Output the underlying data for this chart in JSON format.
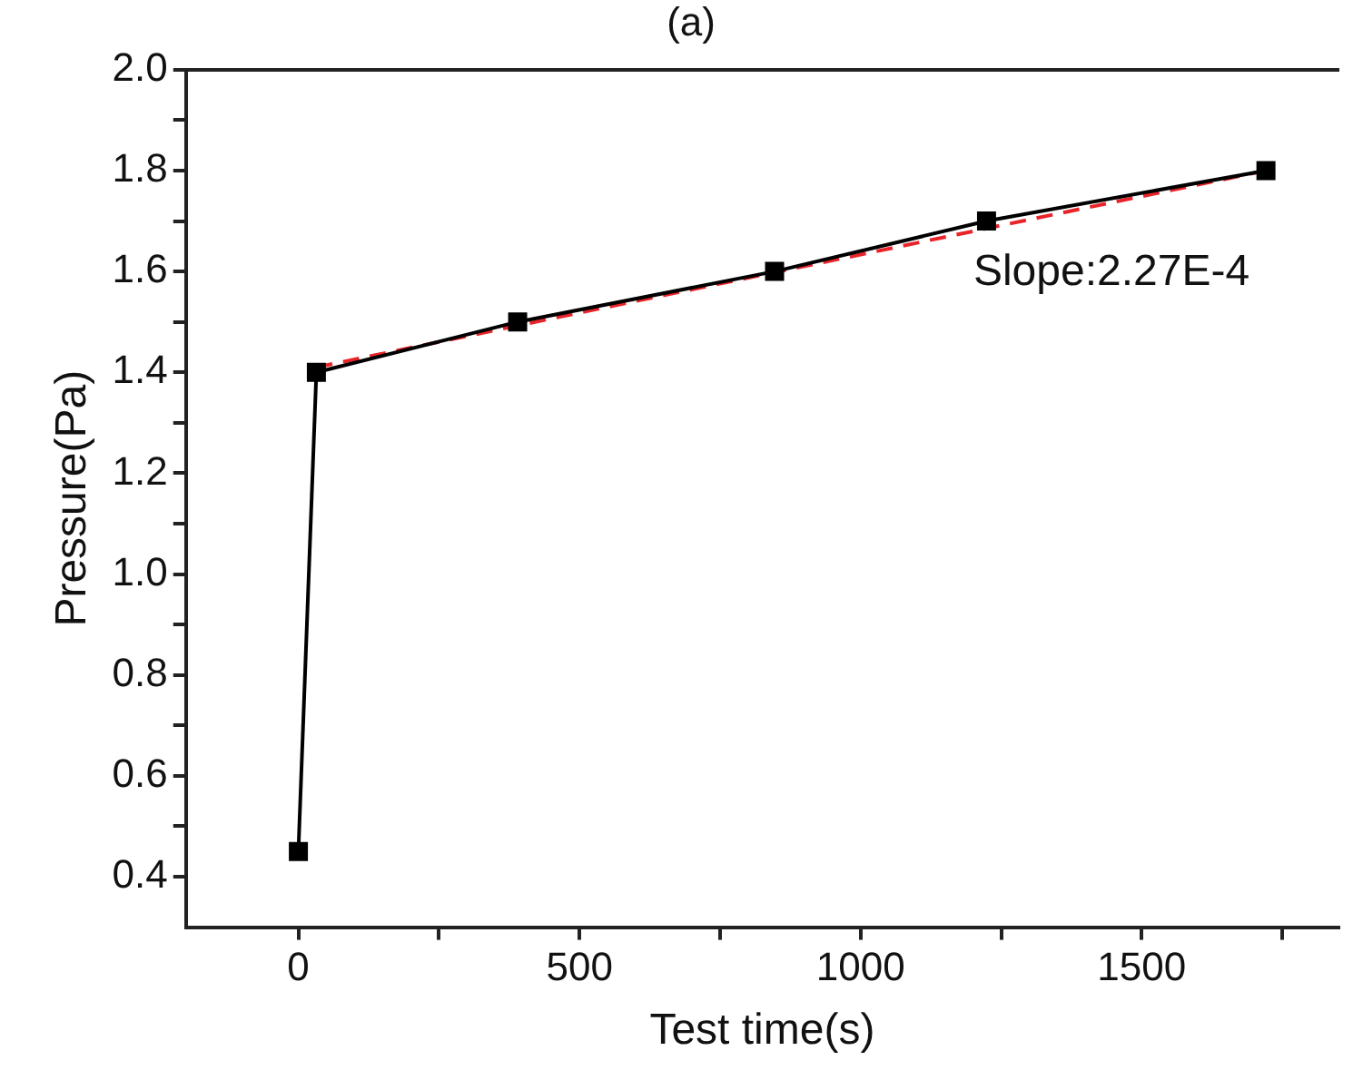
{
  "chart_data": {
    "type": "line",
    "title": "(a)",
    "xlabel": "Test time(s)",
    "ylabel": "Pressure(Pa)",
    "xlim": [
      -200,
      1850
    ],
    "xticks": [
      0,
      {
        "value": 250,
        "label": null
      },
      500,
      {
        "value": 750,
        "label": null
      },
      1000,
      {
        "value": 1250,
        "label": null
      },
      1500,
      {
        "value": 1750,
        "label": null
      }
    ],
    "ylim": [
      0.3,
      2.0
    ],
    "yticks": [
      {
        "value": 0.4,
        "label": "0.4"
      },
      {
        "value": 0.5,
        "label": null
      },
      {
        "value": 0.6,
        "label": "0.6"
      },
      {
        "value": 0.7,
        "label": null
      },
      {
        "value": 0.8,
        "label": "0.8"
      },
      {
        "value": 0.9,
        "label": null
      },
      {
        "value": 1.0,
        "label": "1.0"
      },
      {
        "value": 1.1,
        "label": null
      },
      {
        "value": 1.2,
        "label": "1.2"
      },
      {
        "value": 1.3,
        "label": null
      },
      {
        "value": 1.4,
        "label": "1.4"
      },
      {
        "value": 1.5,
        "label": null
      },
      {
        "value": 1.6,
        "label": "1.6"
      },
      {
        "value": 1.7,
        "label": null
      },
      {
        "value": 1.8,
        "label": "1.8"
      },
      {
        "value": 1.9,
        "label": null
      },
      {
        "value": 2.0,
        "label": "2.0"
      }
    ],
    "grid": false,
    "legend": false,
    "marker": "square",
    "line_style": "solid",
    "series": [
      {
        "color": "#000000",
        "x": [
          0,
          32,
          390,
          847,
          1224,
          1721
        ],
        "values": [
          0.45,
          1.4,
          1.5,
          1.6,
          1.7,
          1.8
        ]
      },
      {
        "color": "#e8242a",
        "x": [
          32,
          1721
        ],
        "values": [
          1.41,
          1.8
        ],
        "marker": "none",
        "line_style": "dashed"
      }
    ],
    "annotations": [
      "Slope:2.27E-4"
    ]
  }
}
